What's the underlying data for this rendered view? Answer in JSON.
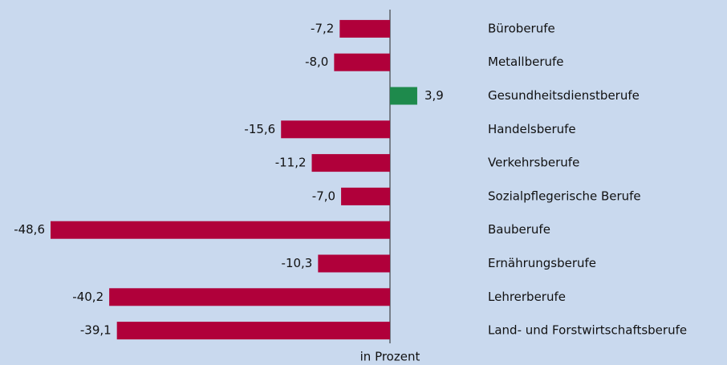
{
  "chart_data": {
    "type": "bar",
    "orientation": "horizontal",
    "categories": [
      "Büroberufe",
      "Metallberufe",
      "Gesundheitsdienstberufe",
      "Handelsberufe",
      "Verkehrsberufe",
      "Sozialpflegerische Berufe",
      "Bauberufe",
      "Ernährungsberufe",
      "Lehrerberufe",
      "Land- und Forstwirtschaftsberufe"
    ],
    "values": [
      -7.2,
      -8.0,
      3.9,
      -15.6,
      -11.2,
      -7.0,
      -48.6,
      -10.3,
      -40.2,
      -39.1
    ],
    "value_labels": [
      "-7,2",
      "-8,0",
      "3,9",
      "-15,6",
      "-11,2",
      "-7,0",
      "-48,6",
      "-10,3",
      "-40,2",
      "-39,1"
    ],
    "colors": [
      "#b0003a",
      "#b0003a",
      "#1e8a4c",
      "#b0003a",
      "#b0003a",
      "#b0003a",
      "#b0003a",
      "#b0003a",
      "#b0003a",
      "#b0003a"
    ],
    "xlabel": "in Prozent"
  }
}
